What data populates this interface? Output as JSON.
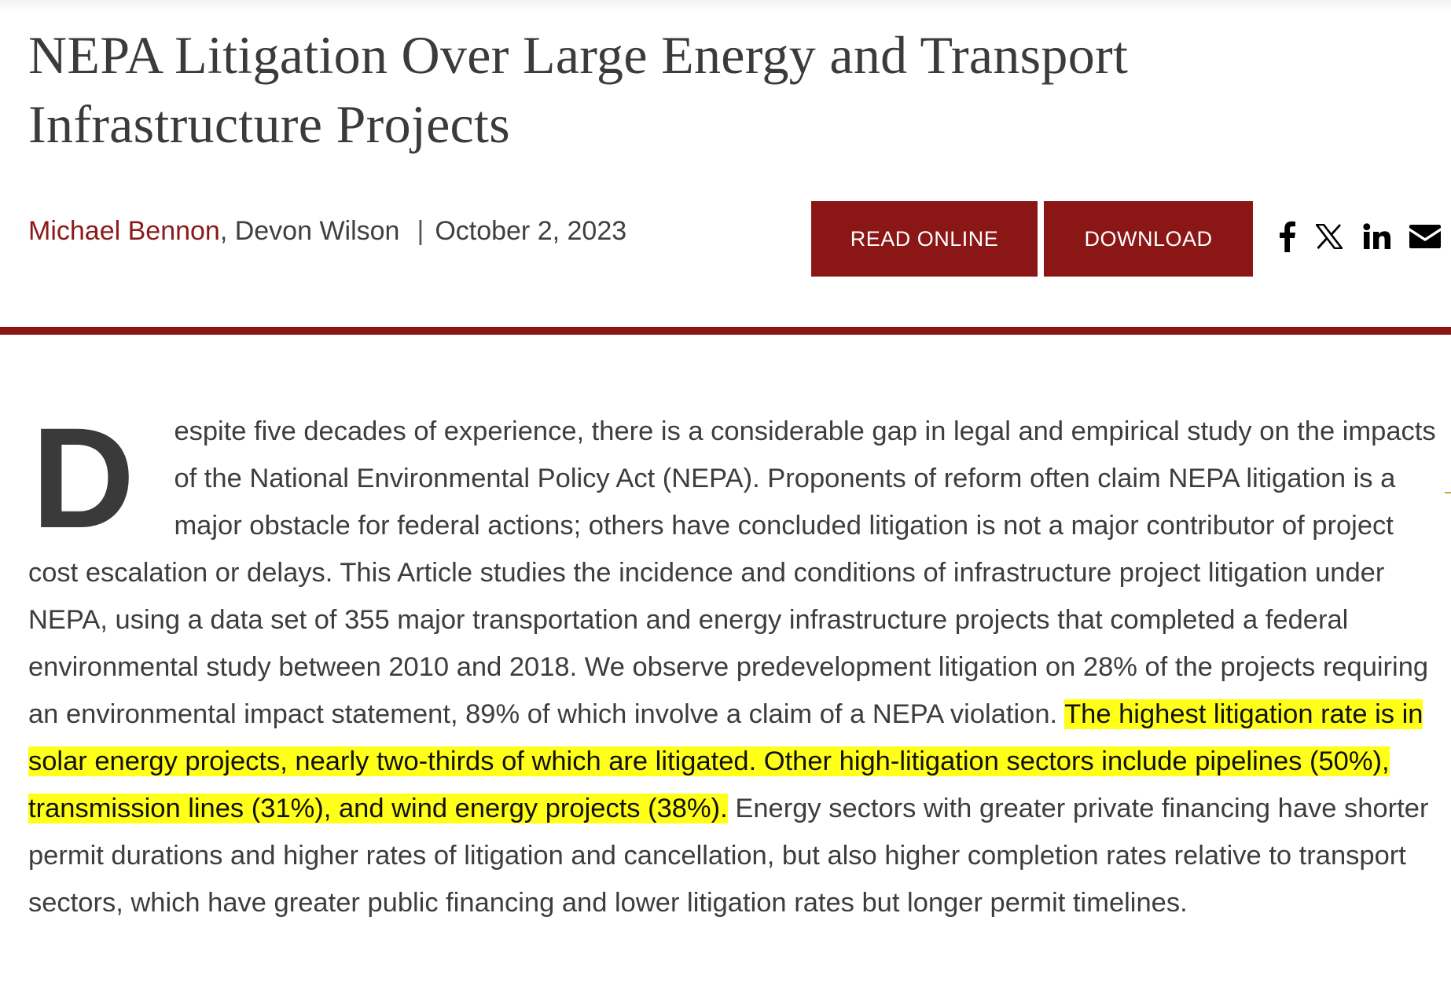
{
  "article": {
    "title": "NEPA Litigation Over Large Energy and Transport Infrastructure Projects",
    "byline": {
      "author_primary": "Michael Bennon",
      "author_secondary": ", Devon Wilson",
      "separator": "|",
      "date": "October 2, 2023"
    },
    "actions": {
      "read_online_label": "READ ONLINE",
      "download_label": "DOWNLOAD"
    },
    "social": [
      {
        "icon": "facebook-icon"
      },
      {
        "icon": "x-icon"
      },
      {
        "icon": "linkedin-icon"
      },
      {
        "icon": "mail-icon"
      }
    ],
    "accent_color": "#8b1616",
    "highlight_color": "#ffff17",
    "body": {
      "drop_cap": "D",
      "text_before": "espite five decades of experience, there is a considerable gap in legal and empirical study on the impacts of the National Environmental Policy Act (NEPA). Proponents of reform often claim NEPA litigation is a major obstacle for federal actions; others have concluded litigation is not a major contributor of project cost escalation or delays. This Article studies the incidence and conditions of infrastructure project litigation under NEPA, using a data set of 355 major transportation and energy infrastructure projects that completed a federal environmental study between 2010 and 2018. We observe predevelopment litigation on 28% of the projects requiring an environmental impact statement, 89% of which involve a claim of a NEPA violation. ",
      "text_highlighted": "The highest litigation rate is in solar energy projects, nearly two-thirds of which are litigated. Other high-litigation sectors include pipelines (50%), transmission lines (31%), and wind energy projects (38%).",
      "text_after": " Energy sectors with greater private financing have shorter permit durations and higher rates of litigation and cancellation, but also higher completion rates relative to transport sectors, which have greater public financing and lower litigation rates but longer permit timelines."
    }
  }
}
